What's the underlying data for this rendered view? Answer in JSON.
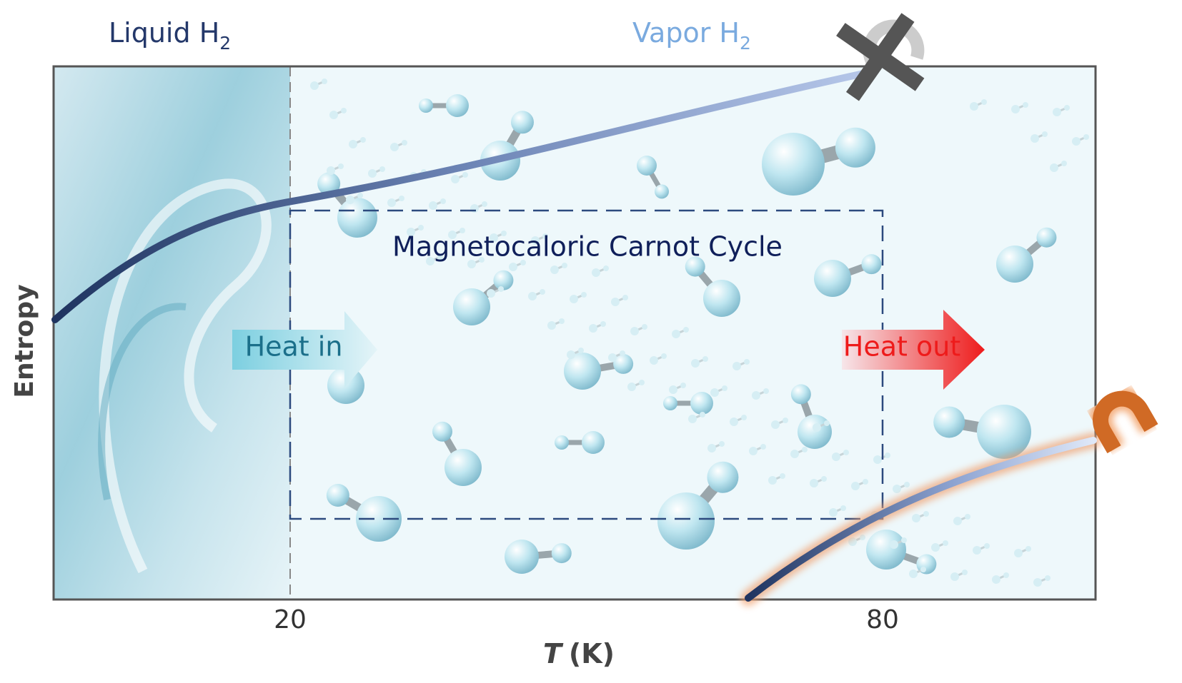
{
  "labels": {
    "liquid": {
      "text": "Liquid H",
      "subscript": "2"
    },
    "vapor": {
      "text": "Vapor H",
      "subscript": "2"
    },
    "cycle": "Magnetocaloric Carnot Cycle",
    "heat_in": "Heat in",
    "heat_out": "Heat out"
  },
  "axes": {
    "y_label": "Entropy",
    "x_label_symbol": "T",
    "x_label_unit": "(K)",
    "x_ticks": [
      "20",
      "80"
    ]
  }
}
